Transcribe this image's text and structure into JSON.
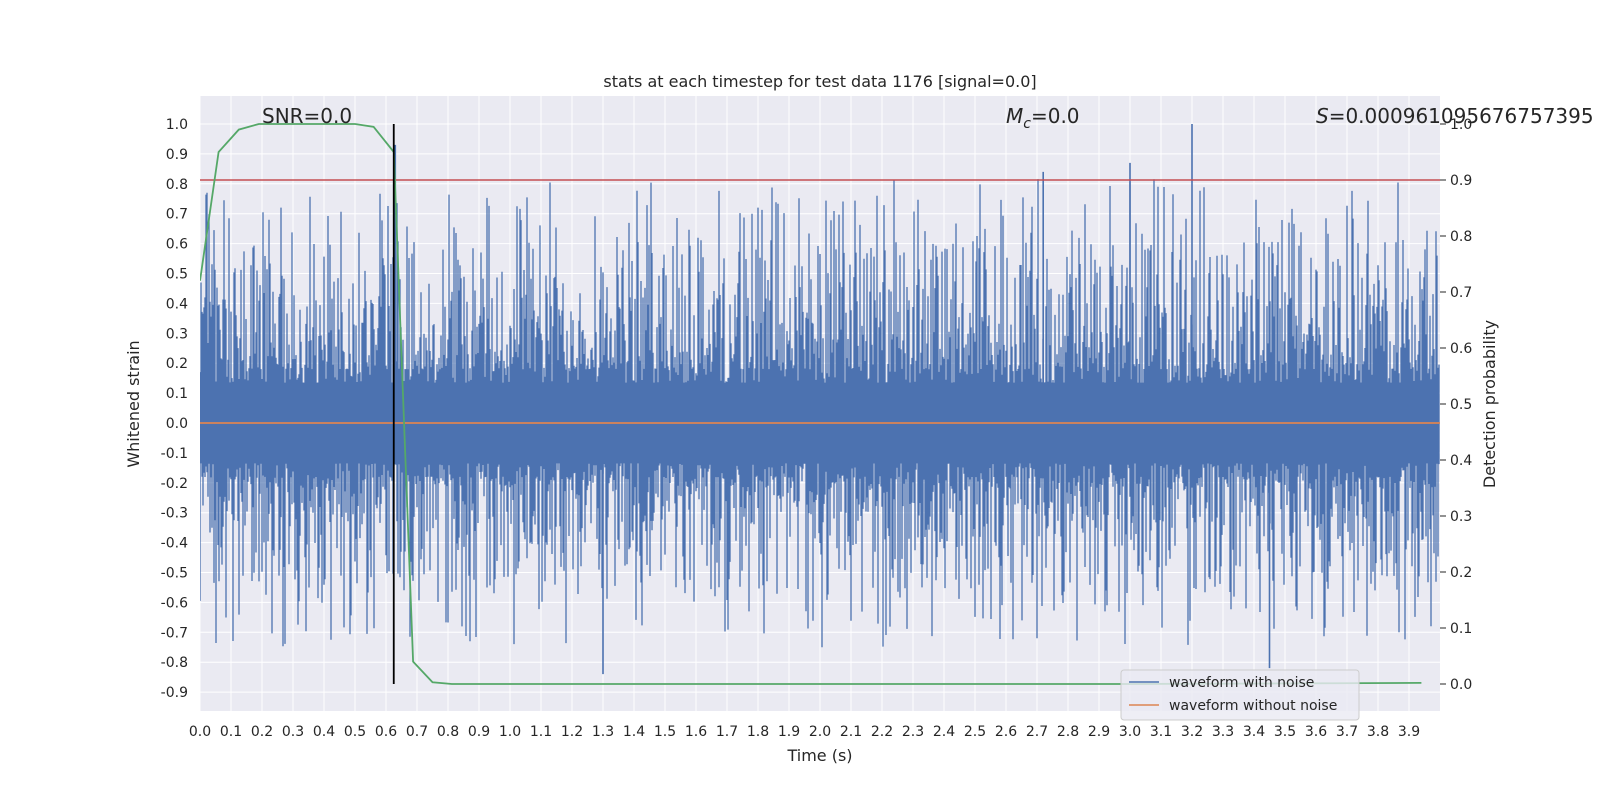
{
  "chart_data": {
    "type": "line",
    "title": "stats at each timestep for test data 1176 [signal=0.0]",
    "xlabel": "Time (s)",
    "ylabel": "Whitened strain",
    "y2label": "Detection probability",
    "xlim": [
      0.0,
      4.0
    ],
    "ylim": [
      -0.95,
      1.08
    ],
    "y2lim": [
      -0.05,
      1.0
    ],
    "x_ticks": [
      "0.0",
      "0.1",
      "0.2",
      "0.3",
      "0.4",
      "0.5",
      "0.6",
      "0.7",
      "0.8",
      "0.9",
      "1.0",
      "1.1",
      "1.2",
      "1.3",
      "1.4",
      "1.5",
      "1.6",
      "1.7",
      "1.8",
      "1.9",
      "2.0",
      "2.1",
      "2.2",
      "2.3",
      "2.4",
      "2.5",
      "2.6",
      "2.7",
      "2.8",
      "2.9",
      "3.0",
      "3.1",
      "3.2",
      "3.3",
      "3.4",
      "3.5",
      "3.6",
      "3.7",
      "3.8",
      "3.9"
    ],
    "y_ticks": [
      "1.0",
      "0.9",
      "0.8",
      "0.7",
      "0.6",
      "0.5",
      "0.4",
      "0.3",
      "0.2",
      "0.1",
      "0.0",
      "-0.1",
      "-0.2",
      "-0.3",
      "-0.4",
      "-0.5",
      "-0.6",
      "-0.7",
      "-0.8",
      "-0.9"
    ],
    "y2_ticks": [
      "1.0",
      "0.9",
      "0.8",
      "0.7",
      "0.6",
      "0.5",
      "0.4",
      "0.3",
      "0.2",
      "0.1",
      "0.0"
    ],
    "annotations": {
      "snr": "SNR=0.0",
      "mc_symbol": "M",
      "mc_sub": "c",
      "mc_value": "=0.0",
      "s_symbol": "S",
      "s_value": "=0.000961095676757395"
    },
    "threshold": 0.9,
    "marker_time": 0.625,
    "series": [
      {
        "name": "waveform with noise",
        "color": "#4c72b0",
        "amplitude_envelope": [
          0.82,
          -0.75
        ],
        "notable_peaks": [
          [
            0.63,
            0.93
          ],
          [
            2.72,
            0.84
          ],
          [
            3.0,
            0.87
          ],
          [
            3.2,
            1.0
          ],
          [
            1.3,
            -0.84
          ],
          [
            3.45,
            -0.82
          ]
        ]
      },
      {
        "name": "waveform without noise",
        "color": "#dd8452",
        "x": [
          0.0,
          4.0
        ],
        "y": [
          0.0,
          0.0
        ]
      },
      {
        "name": "detection probability",
        "color": "#55a868",
        "axis": "right",
        "x": [
          0.0,
          0.06,
          0.125,
          0.19,
          0.25,
          0.31,
          0.38,
          0.44,
          0.5,
          0.56,
          0.625,
          0.6875,
          0.75,
          0.8125,
          0.875,
          1.0,
          2.0,
          3.0,
          3.94
        ],
        "y": [
          0.72,
          0.95,
          0.99,
          1.0,
          1.0,
          1.0,
          1.0,
          1.0,
          1.0,
          0.995,
          0.95,
          0.04,
          0.003,
          0.0,
          0.0,
          0.0,
          0.0,
          0.0,
          0.002
        ]
      }
    ],
    "legend_placement": "lower-right",
    "grid": true
  }
}
